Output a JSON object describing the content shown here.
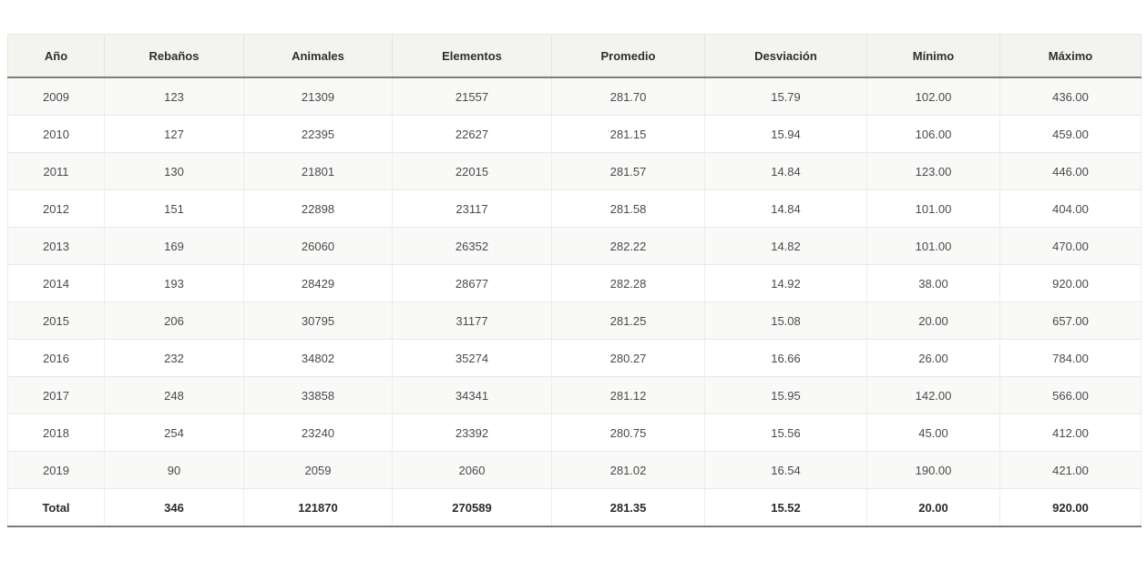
{
  "table": {
    "headers": [
      "Año",
      "Rebaños",
      "Animales",
      "Elementos",
      "Promedio",
      "Desviación",
      "Mínimo",
      "Máximo"
    ],
    "rows": [
      [
        "2009",
        "123",
        "21309",
        "21557",
        "281.70",
        "15.79",
        "102.00",
        "436.00"
      ],
      [
        "2010",
        "127",
        "22395",
        "22627",
        "281.15",
        "15.94",
        "106.00",
        "459.00"
      ],
      [
        "2011",
        "130",
        "21801",
        "22015",
        "281.57",
        "14.84",
        "123.00",
        "446.00"
      ],
      [
        "2012",
        "151",
        "22898",
        "23117",
        "281.58",
        "14.84",
        "101.00",
        "404.00"
      ],
      [
        "2013",
        "169",
        "26060",
        "26352",
        "282.22",
        "14.82",
        "101.00",
        "470.00"
      ],
      [
        "2014",
        "193",
        "28429",
        "28677",
        "282.28",
        "14.92",
        "38.00",
        "920.00"
      ],
      [
        "2015",
        "206",
        "30795",
        "31177",
        "281.25",
        "15.08",
        "20.00",
        "657.00"
      ],
      [
        "2016",
        "232",
        "34802",
        "35274",
        "280.27",
        "16.66",
        "26.00",
        "784.00"
      ],
      [
        "2017",
        "248",
        "33858",
        "34341",
        "281.12",
        "15.95",
        "142.00",
        "566.00"
      ],
      [
        "2018",
        "254",
        "23240",
        "23392",
        "280.75",
        "15.56",
        "45.00",
        "412.00"
      ],
      [
        "2019",
        "90",
        "2059",
        "2060",
        "281.02",
        "16.54",
        "190.00",
        "421.00"
      ]
    ],
    "total": [
      "Total",
      "346",
      "121870",
      "270589",
      "281.35",
      "15.52",
      "20.00",
      "920.00"
    ]
  },
  "colors": {
    "header_bg": "#f3f3ef",
    "row_alt_bg": "#f9f9f8",
    "border_strong": "#7c7c7c"
  }
}
